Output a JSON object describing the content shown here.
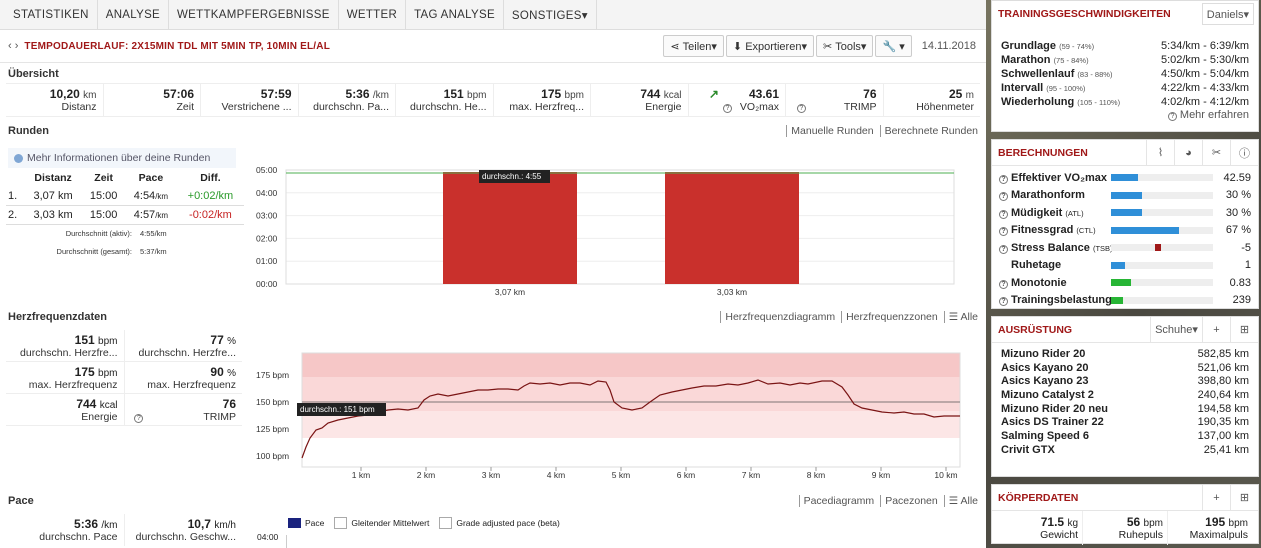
{
  "nav": [
    "STATISTIKEN",
    "ANALYSE",
    "WETTKAMPFERGEBNISSE",
    "WETTER",
    "TAG ANALYSE",
    "SONSTIGES▾"
  ],
  "title": "TEMPODAUERLAUF: 2X15MIN TDL MIT 5MIN TP, 10MIN EL/AL",
  "toolbar": {
    "share": "Teilen▾",
    "export": "Exportieren▾",
    "tools": "Tools▾",
    "wrench": "▾",
    "date": "14.11.2018"
  },
  "overview": {
    "heading": "Übersicht",
    "stats": [
      {
        "value": "10,20",
        "unit": "km",
        "label": "Distanz"
      },
      {
        "value": "57:06",
        "unit": "",
        "label": "Zeit"
      },
      {
        "value": "57:59",
        "unit": "",
        "label": "Verstrichene ..."
      },
      {
        "value": "5:36",
        "unit": "/km",
        "label": "durchschn. Pa..."
      },
      {
        "value": "151",
        "unit": "bpm",
        "label": "durchschn. He..."
      },
      {
        "value": "175",
        "unit": "bpm",
        "label": "max. Herzfreq..."
      },
      {
        "value": "744",
        "unit": "kcal",
        "label": "Energie"
      },
      {
        "value": "43.61",
        "unit": "",
        "label": "VO₂max"
      },
      {
        "value": "76",
        "unit": "",
        "label": "TRIMP"
      },
      {
        "value": "25",
        "unit": "m",
        "label": "Höhenmeter"
      }
    ]
  },
  "laps": {
    "heading": "Runden",
    "links": [
      "Manuelle Runden",
      "Berechnete Runden"
    ],
    "info": "Mehr Informationen über deine Runden",
    "headers": [
      "Distanz",
      "Zeit",
      "Pace",
      "Diff."
    ],
    "rows": [
      {
        "n": "1.",
        "dist": "3,07 km",
        "time": "15:00",
        "pace": "4:54",
        "unit": "/km",
        "diff": "+0:02/km"
      },
      {
        "n": "2.",
        "dist": "3,03 km",
        "time": "15:00",
        "pace": "4:57",
        "unit": "/km",
        "diff": "-0:02/km"
      }
    ],
    "avg_active_label": "Durchschnitt (aktiv):",
    "avg_active": "4:55/km",
    "avg_total_label": "Durchschnitt (gesamt):",
    "avg_total": "5:37/km"
  },
  "lap_chart": {
    "yticks": [
      "05:00",
      "04:00",
      "03:00",
      "02:00",
      "01:00",
      "00:00"
    ],
    "tooltip": "durchschn.: 4:55"
  },
  "hr": {
    "heading": "Herzfrequenzdaten",
    "links": [
      "Herzfrequenzdiagramm",
      "Herzfrequenzzonen",
      "☰ Alle"
    ],
    "cells": [
      {
        "value": "151",
        "unit": "bpm",
        "label": "durchschn. Herzfre..."
      },
      {
        "value": "77",
        "unit": "%",
        "label": "durchschn. Herzfre..."
      },
      {
        "value": "175",
        "unit": "bpm",
        "label": "max. Herzfrequenz"
      },
      {
        "value": "90",
        "unit": "%",
        "label": "max. Herzfrequenz"
      },
      {
        "value": "744",
        "unit": "kcal",
        "label": "Energie"
      },
      {
        "value": "76",
        "unit": "",
        "label": "TRIMP"
      }
    ]
  },
  "hr_chart": {
    "tooltip": "durchschn.: 151 bpm",
    "yticks": [
      "175 bpm",
      "150 bpm",
      "125 bpm",
      "100 bpm"
    ],
    "xticks": [
      "1 km",
      "2 km",
      "3 km",
      "4 km",
      "5 km",
      "6 km",
      "7 km",
      "8 km",
      "9 km",
      "10 km"
    ]
  },
  "pace": {
    "heading": "Pace",
    "links": [
      "Pacediagramm",
      "Pacezonen",
      "☰ Alle"
    ],
    "cells": [
      {
        "value": "5:36",
        "unit": "/km",
        "label": "durchschn. Pace"
      },
      {
        "value": "10,7",
        "unit": "km/h",
        "label": "durchschn. Geschw..."
      }
    ],
    "legend": [
      "Pace",
      "Gleitender Mittelwert",
      "Grade adjusted pace (beta)"
    ],
    "ytick": "04:00"
  },
  "speeds": {
    "heading": "TRAININGSGESCHWINDIGKEITEN",
    "selector": "Daniels▾",
    "rows": [
      {
        "name": "Grundlage",
        "range": "(59 - 74%)",
        "value": "5:34/km - 6:39/km"
      },
      {
        "name": "Marathon",
        "range": "(75 - 84%)",
        "value": "5:02/km - 5:30/km"
      },
      {
        "name": "Schwellenlauf",
        "range": "(83 - 88%)",
        "value": "4:50/km - 5:04/km"
      },
      {
        "name": "Intervall",
        "range": "(95 - 100%)",
        "value": "4:22/km - 4:33/km"
      },
      {
        "name": "Wiederholung",
        "range": "(105 - 110%)",
        "value": "4:02/km - 4:12/km"
      }
    ],
    "more": "Mehr erfahren"
  },
  "calc": {
    "heading": "BERECHNUNGEN",
    "rows": [
      {
        "name": "Effektiver VO₂max",
        "small": "",
        "value": "42.59",
        "q": true
      },
      {
        "name": "Marathonform",
        "small": "",
        "value": "30 %",
        "q": true
      },
      {
        "name": "Müdigkeit",
        "small": "(ATL)",
        "value": "30 %",
        "q": true
      },
      {
        "name": "Fitnessgrad",
        "small": "(CTL)",
        "value": "67 %",
        "q": true
      },
      {
        "name": "Stress Balance",
        "small": "(TSB)",
        "value": "-5",
        "q": true
      },
      {
        "name": "Ruhetage",
        "small": "",
        "value": "1",
        "q": false
      },
      {
        "name": "Monotonie",
        "small": "",
        "value": "0.83",
        "q": true
      },
      {
        "name": "Trainingsbelastung",
        "small": "",
        "value": "239",
        "q": true
      }
    ]
  },
  "equipment": {
    "heading": "AUSRÜSTUNG",
    "selector": "Schuhe▾",
    "items": [
      {
        "name": "Mizuno Rider 20",
        "km": "582,85 km"
      },
      {
        "name": "Asics Kayano 20",
        "km": "521,06 km"
      },
      {
        "name": "Asics Kayano 23",
        "km": "398,80 km"
      },
      {
        "name": "Mizuno Catalyst 2",
        "km": "240,64 km"
      },
      {
        "name": "Mizuno Rider 20 neu",
        "km": "194,58 km"
      },
      {
        "name": "Asics DS Trainer 22",
        "km": "190,35 km"
      },
      {
        "name": "Salming Speed 6",
        "km": "137,00 km"
      },
      {
        "name": "Crivit GTX",
        "km": "25,41 km"
      }
    ]
  },
  "body": {
    "heading": "KÖRPERDATEN",
    "cells": [
      {
        "value": "71.5",
        "unit": "kg",
        "label": "Gewicht"
      },
      {
        "value": "56",
        "unit": "bpm",
        "label": "Ruhepuls"
      },
      {
        "value": "195",
        "unit": "bpm",
        "label": "Maximalpuls"
      }
    ]
  }
}
